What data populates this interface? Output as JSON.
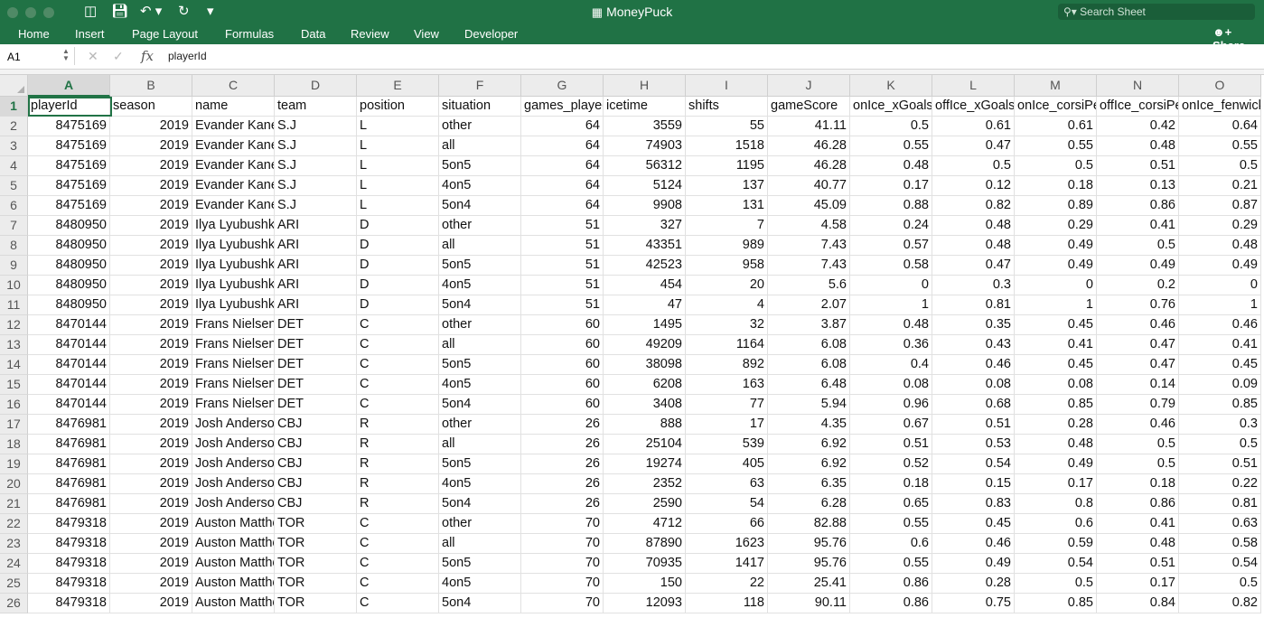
{
  "window": {
    "title": "MoneyPuck",
    "search_placeholder": "Search Sheet",
    "share_label": "Share"
  },
  "toolbar_icons": [
    "sidebar-icon",
    "save-icon",
    "undo-icon",
    "redo-icon",
    "customize-icon"
  ],
  "ribbon": {
    "tabs": [
      "Home",
      "Insert",
      "Page Layout",
      "Formulas",
      "Data",
      "Review",
      "View",
      "Developer"
    ]
  },
  "formula_bar": {
    "name_box": "A1",
    "fx": "fx",
    "value": "playerId"
  },
  "colors": {
    "accent": "#217346",
    "titlebar": "#207245"
  },
  "sheet": {
    "selected_cell": "A1",
    "columns": [
      "A",
      "B",
      "C",
      "D",
      "E",
      "F",
      "G",
      "H",
      "I",
      "J",
      "K",
      "L",
      "M",
      "N",
      "O"
    ],
    "row_numbers": [
      "1",
      "2",
      "3",
      "4",
      "5",
      "6",
      "7",
      "8",
      "9",
      "10",
      "11",
      "12",
      "13",
      "14",
      "15",
      "16",
      "17",
      "18",
      "19",
      "20",
      "21",
      "22",
      "23",
      "24",
      "25",
      "26"
    ],
    "header_row": [
      "playerId",
      "season",
      "name",
      "team",
      "position",
      "situation",
      "games_played",
      "icetime",
      "shifts",
      "gameScore",
      "onIce_xGoalsPercentage",
      "offIce_xGoalsPercentage",
      "onIce_corsiPercentage",
      "offIce_corsiPercentage",
      "onIce_fenwickPercentage"
    ],
    "rows": [
      [
        "8475169",
        "2019",
        "Evander Kane",
        "S.J",
        "L",
        "other",
        "64",
        "3559",
        "55",
        "41.11",
        "0.5",
        "0.61",
        "0.61",
        "0.42",
        "0.64"
      ],
      [
        "8475169",
        "2019",
        "Evander Kane",
        "S.J",
        "L",
        "all",
        "64",
        "74903",
        "1518",
        "46.28",
        "0.55",
        "0.47",
        "0.55",
        "0.48",
        "0.55"
      ],
      [
        "8475169",
        "2019",
        "Evander Kane",
        "S.J",
        "L",
        "5on5",
        "64",
        "56312",
        "1195",
        "46.28",
        "0.48",
        "0.5",
        "0.5",
        "0.51",
        "0.5"
      ],
      [
        "8475169",
        "2019",
        "Evander Kane",
        "S.J",
        "L",
        "4on5",
        "64",
        "5124",
        "137",
        "40.77",
        "0.17",
        "0.12",
        "0.18",
        "0.13",
        "0.21"
      ],
      [
        "8475169",
        "2019",
        "Evander Kane",
        "S.J",
        "L",
        "5on4",
        "64",
        "9908",
        "131",
        "45.09",
        "0.88",
        "0.82",
        "0.89",
        "0.86",
        "0.87"
      ],
      [
        "8480950",
        "2019",
        "Ilya Lyubushkin",
        "ARI",
        "D",
        "other",
        "51",
        "327",
        "7",
        "4.58",
        "0.24",
        "0.48",
        "0.29",
        "0.41",
        "0.29"
      ],
      [
        "8480950",
        "2019",
        "Ilya Lyubushkin",
        "ARI",
        "D",
        "all",
        "51",
        "43351",
        "989",
        "7.43",
        "0.57",
        "0.48",
        "0.49",
        "0.5",
        "0.48"
      ],
      [
        "8480950",
        "2019",
        "Ilya Lyubushkin",
        "ARI",
        "D",
        "5on5",
        "51",
        "42523",
        "958",
        "7.43",
        "0.58",
        "0.47",
        "0.49",
        "0.49",
        "0.49"
      ],
      [
        "8480950",
        "2019",
        "Ilya Lyubushkin",
        "ARI",
        "D",
        "4on5",
        "51",
        "454",
        "20",
        "5.6",
        "0",
        "0.3",
        "0",
        "0.2",
        "0"
      ],
      [
        "8480950",
        "2019",
        "Ilya Lyubushkin",
        "ARI",
        "D",
        "5on4",
        "51",
        "47",
        "4",
        "2.07",
        "1",
        "0.81",
        "1",
        "0.76",
        "1"
      ],
      [
        "8470144",
        "2019",
        "Frans Nielsen",
        "DET",
        "C",
        "other",
        "60",
        "1495",
        "32",
        "3.87",
        "0.48",
        "0.35",
        "0.45",
        "0.46",
        "0.46"
      ],
      [
        "8470144",
        "2019",
        "Frans Nielsen",
        "DET",
        "C",
        "all",
        "60",
        "49209",
        "1164",
        "6.08",
        "0.36",
        "0.43",
        "0.41",
        "0.47",
        "0.41"
      ],
      [
        "8470144",
        "2019",
        "Frans Nielsen",
        "DET",
        "C",
        "5on5",
        "60",
        "38098",
        "892",
        "6.08",
        "0.4",
        "0.46",
        "0.45",
        "0.47",
        "0.45"
      ],
      [
        "8470144",
        "2019",
        "Frans Nielsen",
        "DET",
        "C",
        "4on5",
        "60",
        "6208",
        "163",
        "6.48",
        "0.08",
        "0.08",
        "0.08",
        "0.14",
        "0.09"
      ],
      [
        "8470144",
        "2019",
        "Frans Nielsen",
        "DET",
        "C",
        "5on4",
        "60",
        "3408",
        "77",
        "5.94",
        "0.96",
        "0.68",
        "0.85",
        "0.79",
        "0.85"
      ],
      [
        "8476981",
        "2019",
        "Josh Anderson",
        "CBJ",
        "R",
        "other",
        "26",
        "888",
        "17",
        "4.35",
        "0.67",
        "0.51",
        "0.28",
        "0.46",
        "0.3"
      ],
      [
        "8476981",
        "2019",
        "Josh Anderson",
        "CBJ",
        "R",
        "all",
        "26",
        "25104",
        "539",
        "6.92",
        "0.51",
        "0.53",
        "0.48",
        "0.5",
        "0.5"
      ],
      [
        "8476981",
        "2019",
        "Josh Anderson",
        "CBJ",
        "R",
        "5on5",
        "26",
        "19274",
        "405",
        "6.92",
        "0.52",
        "0.54",
        "0.49",
        "0.5",
        "0.51"
      ],
      [
        "8476981",
        "2019",
        "Josh Anderson",
        "CBJ",
        "R",
        "4on5",
        "26",
        "2352",
        "63",
        "6.35",
        "0.18",
        "0.15",
        "0.17",
        "0.18",
        "0.22"
      ],
      [
        "8476981",
        "2019",
        "Josh Anderson",
        "CBJ",
        "R",
        "5on4",
        "26",
        "2590",
        "54",
        "6.28",
        "0.65",
        "0.83",
        "0.8",
        "0.86",
        "0.81"
      ],
      [
        "8479318",
        "2019",
        "Auston Matthews",
        "TOR",
        "C",
        "other",
        "70",
        "4712",
        "66",
        "82.88",
        "0.55",
        "0.45",
        "0.6",
        "0.41",
        "0.63"
      ],
      [
        "8479318",
        "2019",
        "Auston Matthews",
        "TOR",
        "C",
        "all",
        "70",
        "87890",
        "1623",
        "95.76",
        "0.6",
        "0.46",
        "0.59",
        "0.48",
        "0.58"
      ],
      [
        "8479318",
        "2019",
        "Auston Matthews",
        "TOR",
        "C",
        "5on5",
        "70",
        "70935",
        "1417",
        "95.76",
        "0.55",
        "0.49",
        "0.54",
        "0.51",
        "0.54"
      ],
      [
        "8479318",
        "2019",
        "Auston Matthews",
        "TOR",
        "C",
        "4on5",
        "70",
        "150",
        "22",
        "25.41",
        "0.86",
        "0.28",
        "0.5",
        "0.17",
        "0.5"
      ],
      [
        "8479318",
        "2019",
        "Auston Matthews",
        "TOR",
        "C",
        "5on4",
        "70",
        "12093",
        "118",
        "90.11",
        "0.86",
        "0.75",
        "0.85",
        "0.84",
        "0.82"
      ]
    ],
    "numeric_columns": [
      0,
      1,
      6,
      7,
      8,
      9,
      10,
      11,
      12,
      13,
      14
    ]
  }
}
